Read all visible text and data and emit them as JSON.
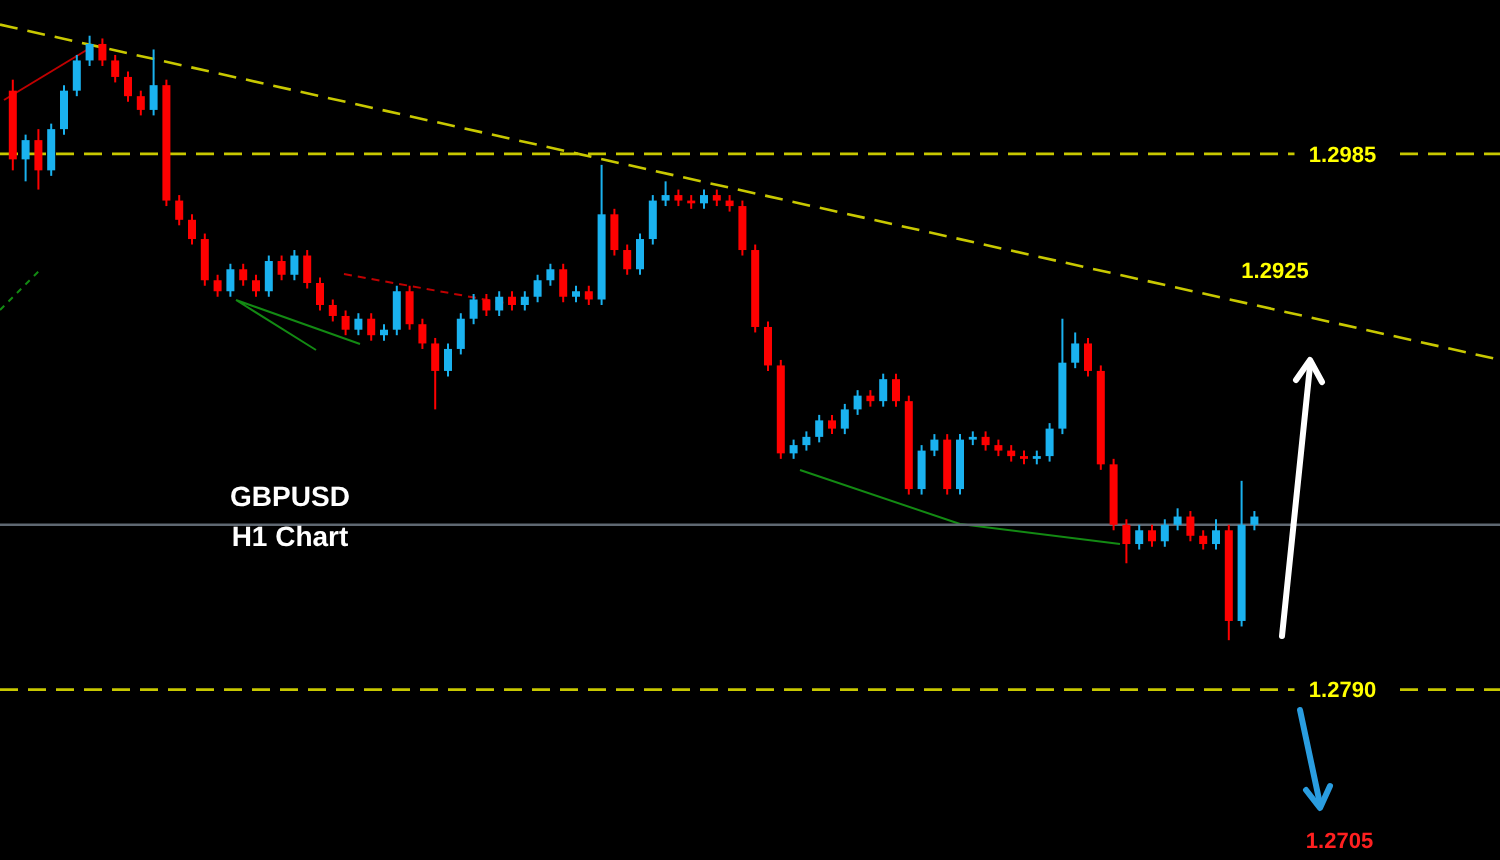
{
  "chart_data": {
    "type": "candlestick",
    "title": "GBPUSD",
    "subtitle": "H1 Chart",
    "tick_labels": "y",
    "ylim": [
      1.2728,
      1.3041
    ],
    "yticks": [
      {
        "value": 1.2985,
        "label": "1.2985"
      },
      {
        "value": 1.279,
        "label": "1.2790"
      }
    ],
    "categories": [
      null,
      null,
      null,
      null,
      null,
      null,
      null,
      null,
      null,
      null,
      null,
      null,
      null,
      null,
      null,
      null,
      null,
      null,
      null,
      null,
      null,
      null,
      null,
      null,
      null,
      null,
      null,
      null,
      null,
      null,
      null,
      null,
      null,
      null,
      null,
      null,
      null,
      null,
      null,
      null,
      null,
      null,
      null,
      null,
      null,
      null,
      null,
      null,
      null,
      null,
      null,
      null,
      null,
      null,
      null,
      null,
      null,
      null,
      null,
      null,
      null,
      null,
      null,
      null,
      null,
      null,
      null,
      null,
      null,
      null,
      null,
      null,
      null,
      null,
      null,
      null,
      null,
      null,
      null,
      null,
      null,
      null,
      null,
      null,
      null,
      null,
      null,
      null,
      null,
      null,
      null,
      null,
      null,
      null,
      null,
      null,
      null,
      null
    ],
    "ohlc": [
      [
        1.3008,
        1.3012,
        1.2979,
        1.2983
      ],
      [
        1.2983,
        1.2992,
        1.2975,
        1.299
      ],
      [
        1.299,
        1.2994,
        1.2972,
        1.2979
      ],
      [
        1.2979,
        1.2996,
        1.2977,
        1.2994
      ],
      [
        1.2994,
        1.301,
        1.2992,
        1.3008
      ],
      [
        1.3008,
        1.3021,
        1.3006,
        1.3019
      ],
      [
        1.3019,
        1.3028,
        1.3017,
        1.3025
      ],
      [
        1.3025,
        1.3027,
        1.3017,
        1.3019
      ],
      [
        1.3019,
        1.3021,
        1.3011,
        1.3013
      ],
      [
        1.3013,
        1.3015,
        1.3004,
        1.3006
      ],
      [
        1.3006,
        1.3008,
        1.2999,
        1.3001
      ],
      [
        1.3001,
        1.3023,
        1.2999,
        1.301
      ],
      [
        1.301,
        1.3012,
        1.2966,
        1.2968
      ],
      [
        1.2968,
        1.297,
        1.2959,
        1.2961
      ],
      [
        1.2961,
        1.2963,
        1.2952,
        1.2954
      ],
      [
        1.2954,
        1.2956,
        1.2937,
        1.2939
      ],
      [
        1.2939,
        1.2941,
        1.2933,
        1.2935
      ],
      [
        1.2935,
        1.2945,
        1.2933,
        1.2943
      ],
      [
        1.2943,
        1.2945,
        1.2937,
        1.2939
      ],
      [
        1.2939,
        1.2941,
        1.2933,
        1.2935
      ],
      [
        1.2935,
        1.2948,
        1.2933,
        1.2946
      ],
      [
        1.2946,
        1.2948,
        1.2939,
        1.2941
      ],
      [
        1.2941,
        1.295,
        1.2939,
        1.2948
      ],
      [
        1.2948,
        1.295,
        1.2936,
        1.2938
      ],
      [
        1.2938,
        1.294,
        1.2928,
        1.293
      ],
      [
        1.293,
        1.2932,
        1.2924,
        1.2926
      ],
      [
        1.2926,
        1.2928,
        1.2919,
        1.2921
      ],
      [
        1.2921,
        1.2927,
        1.2919,
        1.2925
      ],
      [
        1.2925,
        1.2927,
        1.2917,
        1.2919
      ],
      [
        1.2919,
        1.2923,
        1.2917,
        1.2921
      ],
      [
        1.2921,
        1.2937,
        1.2919,
        1.2935
      ],
      [
        1.2935,
        1.2937,
        1.2921,
        1.2923
      ],
      [
        1.2923,
        1.2925,
        1.2914,
        1.2916
      ],
      [
        1.2916,
        1.2918,
        1.2892,
        1.2906
      ],
      [
        1.2906,
        1.2916,
        1.2904,
        1.2914
      ],
      [
        1.2914,
        1.2927,
        1.2912,
        1.2925
      ],
      [
        1.2925,
        1.2934,
        1.2923,
        1.2932
      ],
      [
        1.2932,
        1.2934,
        1.2926,
        1.2928
      ],
      [
        1.2928,
        1.2935,
        1.2926,
        1.2933
      ],
      [
        1.2933,
        1.2935,
        1.2928,
        1.293
      ],
      [
        1.293,
        1.2935,
        1.2928,
        1.2933
      ],
      [
        1.2933,
        1.2941,
        1.2931,
        1.2939
      ],
      [
        1.2939,
        1.2945,
        1.2937,
        1.2943
      ],
      [
        1.2943,
        1.2945,
        1.2931,
        1.2933
      ],
      [
        1.2933,
        1.2937,
        1.2931,
        1.2935
      ],
      [
        1.2935,
        1.2937,
        1.293,
        1.2932
      ],
      [
        1.2932,
        1.2981,
        1.293,
        1.2963
      ],
      [
        1.2963,
        1.2965,
        1.2948,
        1.295
      ],
      [
        1.295,
        1.2952,
        1.2941,
        1.2943
      ],
      [
        1.2943,
        1.2956,
        1.2941,
        1.2954
      ],
      [
        1.2954,
        1.297,
        1.2952,
        1.2968
      ],
      [
        1.2968,
        1.2975,
        1.2966,
        1.297
      ],
      [
        1.297,
        1.2972,
        1.2966,
        1.2968
      ],
      [
        1.2968,
        1.297,
        1.2965,
        1.2967
      ],
      [
        1.2967,
        1.2972,
        1.2965,
        1.297
      ],
      [
        1.297,
        1.2972,
        1.2966,
        1.2968
      ],
      [
        1.2968,
        1.297,
        1.2964,
        1.2966
      ],
      [
        1.2966,
        1.2968,
        1.2948,
        1.295
      ],
      [
        1.295,
        1.2952,
        1.292,
        1.2922
      ],
      [
        1.2922,
        1.2924,
        1.2906,
        1.2908
      ],
      [
        1.2908,
        1.291,
        1.2874,
        1.2876
      ],
      [
        1.2876,
        1.2881,
        1.2874,
        1.2879
      ],
      [
        1.2879,
        1.2884,
        1.2877,
        1.2882
      ],
      [
        1.2882,
        1.289,
        1.288,
        1.2888
      ],
      [
        1.2888,
        1.289,
        1.2883,
        1.2885
      ],
      [
        1.2885,
        1.2894,
        1.2883,
        1.2892
      ],
      [
        1.2892,
        1.2899,
        1.289,
        1.2897
      ],
      [
        1.2897,
        1.2899,
        1.2893,
        1.2895
      ],
      [
        1.2895,
        1.2905,
        1.2893,
        1.2903
      ],
      [
        1.2903,
        1.2905,
        1.2893,
        1.2895
      ],
      [
        1.2895,
        1.2897,
        1.2861,
        1.2863
      ],
      [
        1.2863,
        1.2879,
        1.2861,
        1.2877
      ],
      [
        1.2877,
        1.2883,
        1.2875,
        1.2881
      ],
      [
        1.2881,
        1.2883,
        1.2861,
        1.2863
      ],
      [
        1.2863,
        1.2883,
        1.2861,
        1.2881
      ],
      [
        1.2881,
        1.2884,
        1.2879,
        1.2882
      ],
      [
        1.2882,
        1.2884,
        1.2877,
        1.2879
      ],
      [
        1.2879,
        1.2881,
        1.2875,
        1.2877
      ],
      [
        1.2877,
        1.2879,
        1.2873,
        1.2875
      ],
      [
        1.2875,
        1.2877,
        1.2872,
        1.2874
      ],
      [
        1.2874,
        1.2877,
        1.2872,
        1.2875
      ],
      [
        1.2875,
        1.2887,
        1.2873,
        1.2885
      ],
      [
        1.2885,
        1.2925,
        1.2883,
        1.2909
      ],
      [
        1.2909,
        1.292,
        1.2907,
        1.2916
      ],
      [
        1.2916,
        1.2918,
        1.2904,
        1.2906
      ],
      [
        1.2906,
        1.2908,
        1.287,
        1.2872
      ],
      [
        1.2872,
        1.2874,
        1.2848,
        1.285
      ],
      [
        1.285,
        1.2852,
        1.2836,
        1.2843
      ],
      [
        1.2843,
        1.285,
        1.2841,
        1.2848
      ],
      [
        1.2848,
        1.285,
        1.2842,
        1.2844
      ],
      [
        1.2844,
        1.2852,
        1.2842,
        1.285
      ],
      [
        1.285,
        1.2856,
        1.2848,
        1.2853
      ],
      [
        1.2853,
        1.2855,
        1.2844,
        1.2846
      ],
      [
        1.2846,
        1.2848,
        1.2841,
        1.2843
      ],
      [
        1.2843,
        1.2852,
        1.2841,
        1.2848
      ],
      [
        1.2848,
        1.285,
        1.2808,
        1.2815
      ],
      [
        1.2815,
        1.2866,
        1.2813,
        1.285
      ],
      [
        1.285,
        1.2855,
        1.2848,
        1.2853
      ]
    ],
    "colors": [
      "#ff0000",
      "#1ab2ef",
      "#ff0000",
      "#1ab2ef",
      "#1ab2ef",
      "#1ab2ef",
      "#1ab2ef",
      "#ff0000",
      "#ff0000",
      "#ff0000",
      "#ff0000",
      "#1ab2ef",
      "#ff0000",
      "#ff0000",
      "#ff0000",
      "#ff0000",
      "#ff0000",
      "#1ab2ef",
      "#ff0000",
      "#ff0000",
      "#1ab2ef",
      "#ff0000",
      "#1ab2ef",
      "#ff0000",
      "#ff0000",
      "#ff0000",
      "#ff0000",
      "#1ab2ef",
      "#ff0000",
      "#1ab2ef",
      "#1ab2ef",
      "#ff0000",
      "#ff0000",
      "#ff0000",
      "#1ab2ef",
      "#1ab2ef",
      "#1ab2ef",
      "#ff0000",
      "#1ab2ef",
      "#ff0000",
      "#1ab2ef",
      "#1ab2ef",
      "#1ab2ef",
      "#ff0000",
      "#1ab2ef",
      "#ff0000",
      "#1ab2ef",
      "#ff0000",
      "#ff0000",
      "#1ab2ef",
      "#1ab2ef",
      "#1ab2ef",
      "#ff0000",
      "#ff0000",
      "#1ab2ef",
      "#ff0000",
      "#ff0000",
      "#ff0000",
      "#ff0000",
      "#ff0000",
      "#ff0000",
      "#1ab2ef",
      "#1ab2ef",
      "#1ab2ef",
      "#ff0000",
      "#1ab2ef",
      "#1ab2ef",
      "#ff0000",
      "#1ab2ef",
      "#ff0000",
      "#ff0000",
      "#1ab2ef",
      "#1ab2ef",
      "#ff0000",
      "#1ab2ef",
      "#1ab2ef",
      "#ff0000",
      "#ff0000",
      "#ff0000",
      "#ff0000",
      "#1ab2ef",
      "#1ab2ef",
      "#1ab2ef",
      "#1ab2ef",
      "#ff0000",
      "#ff0000",
      "#ff0000",
      "#ff0000",
      "#1ab2ef",
      "#ff0000",
      "#1ab2ef",
      "#1ab2ef",
      "#ff0000",
      "#ff0000",
      "#1ab2ef",
      "#ff0000",
      "#1ab2ef",
      "#1ab2ef"
    ],
    "series": [
      {
        "type": "line",
        "color": "#c8c800",
        "line_style": "dashed",
        "values": [
          1.3031,
          null,
          null,
          null,
          null,
          null,
          null,
          null,
          null,
          null,
          null,
          null,
          null,
          null,
          null,
          null,
          null,
          null,
          null,
          null,
          null,
          null,
          null,
          null,
          null,
          null,
          null,
          null,
          null,
          null,
          null,
          null,
          null,
          null,
          null,
          null,
          null,
          null,
          null,
          null,
          null,
          null,
          null,
          null,
          null,
          null,
          null,
          null,
          null,
          null,
          null,
          null,
          null,
          null,
          null,
          null,
          null,
          null,
          null,
          null,
          null,
          null,
          null,
          null,
          null,
          null,
          null,
          null,
          null,
          null,
          null,
          null,
          null,
          null,
          null,
          null,
          null,
          null,
          null,
          null,
          null,
          null,
          null,
          null,
          null,
          null,
          null,
          null,
          null,
          null,
          null,
          null,
          null,
          null,
          null,
          null,
          null,
          1.293
        ]
      }
    ],
    "ref_lines": [
      {
        "axis": "y",
        "value": 1.2985,
        "color": "#c8c800",
        "line_style": "dashed"
      },
      {
        "axis": "y",
        "value": 1.279,
        "color": "#c8c800",
        "line_style": "dashed"
      },
      {
        "axis": "y",
        "value": 1.285,
        "color": "#5f6872",
        "line_style": "solid"
      }
    ],
    "annotations": [
      "1.2925",
      "1.2705"
    ]
  }
}
